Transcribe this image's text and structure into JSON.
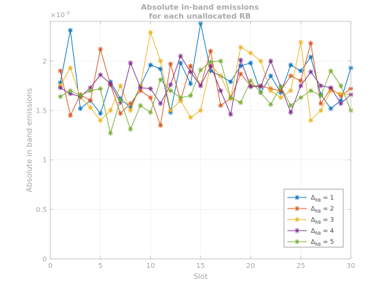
{
  "chart_data": {
    "type": "line",
    "title": [
      "Absolute in-band emissions",
      "for each unallocated RB"
    ],
    "xlabel": "Slot",
    "ylabel": "Absolute in band emissions",
    "exponent_label": "×10",
    "exponent_power": "-3",
    "xlim": [
      0,
      30
    ],
    "ylim": [
      0,
      0.0024
    ],
    "xticks": [
      0,
      5,
      10,
      15,
      20,
      25,
      30
    ],
    "yticks": [
      0,
      0.0005,
      0.001,
      0.0015,
      0.002
    ],
    "ytick_labels": [
      "0",
      "0.5",
      "1",
      "1.5",
      "2"
    ],
    "grid": true,
    "legend_position": "lower-right",
    "x": [
      1,
      2,
      3,
      4,
      5,
      6,
      7,
      8,
      9,
      10,
      11,
      12,
      13,
      14,
      15,
      16,
      17,
      18,
      19,
      20,
      21,
      22,
      23,
      24,
      25,
      26,
      27,
      28,
      29,
      30
    ],
    "series": [
      {
        "name": "ΔRB = 1",
        "legend_base": "Δ",
        "legend_sub": "RB",
        "legend_value": " = 1",
        "color": "#0072BD",
        "values": [
          0.00178,
          0.00231,
          0.00152,
          0.0016,
          0.00147,
          0.00179,
          0.00162,
          0.00153,
          0.00175,
          0.00196,
          0.00192,
          0.00148,
          0.00198,
          0.00177,
          0.00238,
          0.0019,
          0.00185,
          0.00179,
          0.00195,
          0.00198,
          0.00168,
          0.00185,
          0.00168,
          0.00196,
          0.0019,
          0.00204,
          0.00166,
          0.00152,
          0.0016,
          0.00193
        ]
      },
      {
        "name": "ΔRB = 2",
        "legend_base": "Δ",
        "legend_sub": "RB",
        "legend_value": " = 2",
        "color": "#D95319",
        "values": [
          0.0019,
          0.00145,
          0.00166,
          0.0016,
          0.00212,
          0.00176,
          0.00147,
          0.00157,
          0.0017,
          0.00163,
          0.00135,
          0.00197,
          0.0016,
          0.00195,
          0.00175,
          0.0021,
          0.00155,
          0.00162,
          0.00187,
          0.00175,
          0.00175,
          0.00172,
          0.0017,
          0.00185,
          0.0018,
          0.00218,
          0.00157,
          0.00172,
          0.00165,
          0.00172
        ]
      },
      {
        "name": "ΔRB = 3",
        "legend_base": "Δ",
        "legend_sub": "RB",
        "legend_value": " = 3",
        "color": "#EDB120",
        "values": [
          0.00175,
          0.00193,
          0.00163,
          0.00153,
          0.0014,
          0.0015,
          0.00175,
          0.0015,
          0.00175,
          0.00229,
          0.002,
          0.0015,
          0.0016,
          0.00143,
          0.0015,
          0.00196,
          0.00185,
          0.00162,
          0.00214,
          0.00208,
          0.002,
          0.0017,
          0.00163,
          0.0017,
          0.00219,
          0.0014,
          0.0015,
          0.0017,
          0.00167,
          0.00166
        ]
      },
      {
        "name": "ΔRB = 4",
        "legend_base": "Δ",
        "legend_sub": "RB",
        "legend_value": " = 4",
        "color": "#7E2F8E",
        "values": [
          0.00173,
          0.00167,
          0.00164,
          0.00173,
          0.00186,
          0.00177,
          0.00158,
          0.00198,
          0.00173,
          0.00172,
          0.00157,
          0.00176,
          0.00205,
          0.00189,
          0.00175,
          0.00195,
          0.0017,
          0.00146,
          0.00201,
          0.00174,
          0.00174,
          0.002,
          0.00174,
          0.00148,
          0.00175,
          0.00189,
          0.00175,
          0.00173,
          0.00157,
          0.00166
        ]
      },
      {
        "name": "ΔRB = 5",
        "legend_base": "Δ",
        "legend_sub": "RB",
        "legend_value": " = 5",
        "color": "#77AC30",
        "values": [
          0.00164,
          0.0017,
          0.00165,
          0.0017,
          0.00172,
          0.00127,
          0.00161,
          0.00131,
          0.00155,
          0.00148,
          0.00181,
          0.0017,
          0.00163,
          0.00165,
          0.00191,
          0.00199,
          0.002,
          0.00163,
          0.00158,
          0.0018,
          0.00168,
          0.00156,
          0.00174,
          0.00155,
          0.00163,
          0.0017,
          0.00165,
          0.0019,
          0.00175,
          0.0015
        ]
      }
    ]
  }
}
